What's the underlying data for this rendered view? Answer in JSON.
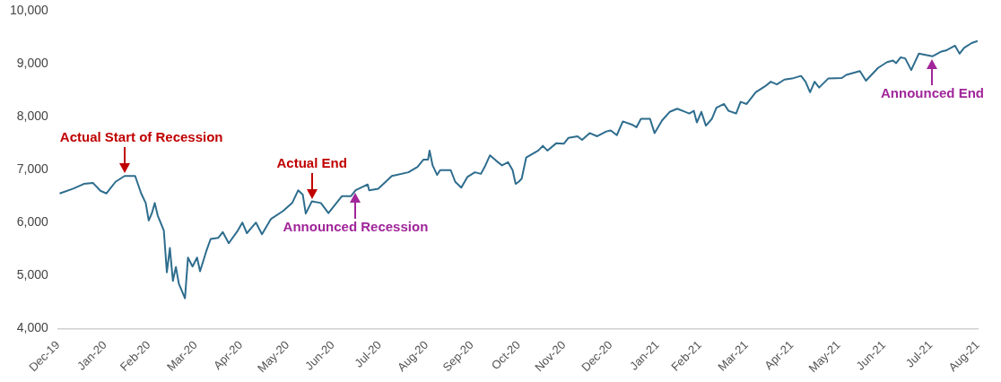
{
  "chart_data": {
    "type": "line",
    "x": [
      "2020-01-01",
      "2020-01-10",
      "2020-01-17",
      "2020-01-23",
      "2020-01-28",
      "2020-02-01",
      "2020-02-07",
      "2020-02-13",
      "2020-02-20",
      "2020-02-24",
      "2020-02-27",
      "2020-02-29",
      "2020-03-02",
      "2020-03-04",
      "2020-03-06",
      "2020-03-10",
      "2020-03-12",
      "2020-03-14",
      "2020-03-16",
      "2020-03-18",
      "2020-03-20",
      "2020-03-24",
      "2020-03-26",
      "2020-03-29",
      "2020-04-01",
      "2020-04-03",
      "2020-04-07",
      "2020-04-10",
      "2020-04-15",
      "2020-04-18",
      "2020-04-22",
      "2020-04-28",
      "2020-05-01",
      "2020-05-04",
      "2020-05-10",
      "2020-05-14",
      "2020-05-20",
      "2020-05-28",
      "2020-06-03",
      "2020-06-07",
      "2020-06-10",
      "2020-06-12",
      "2020-06-16",
      "2020-06-22",
      "2020-06-27",
      "2020-07-06",
      "2020-07-12",
      "2020-07-15",
      "2020-07-23",
      "2020-07-24",
      "2020-07-30",
      "2020-08-08",
      "2020-08-19",
      "2020-08-25",
      "2020-08-29",
      "2020-09-01",
      "2020-09-02",
      "2020-09-04",
      "2020-09-07",
      "2020-09-09",
      "2020-09-16",
      "2020-09-19",
      "2020-09-23",
      "2020-09-27",
      "2020-10-02",
      "2020-10-06",
      "2020-10-09",
      "2020-10-12",
      "2020-10-16",
      "2020-10-20",
      "2020-10-24",
      "2020-10-27",
      "2020-10-29",
      "2020-10-31",
      "2020-11-02",
      "2020-11-05",
      "2020-11-13",
      "2020-11-16",
      "2020-11-19",
      "2020-11-25",
      "2020-11-30",
      "2020-12-03",
      "2020-12-09",
      "2020-12-12",
      "2020-12-17",
      "2020-12-22",
      "2020-12-28",
      "2020-12-31",
      "2021-01-04",
      "2021-01-08",
      "2021-01-14",
      "2021-01-17",
      "2021-01-20",
      "2021-01-26",
      "2021-01-29",
      "2021-02-03",
      "2021-02-08",
      "2021-02-13",
      "2021-02-21",
      "2021-02-24",
      "2021-02-26",
      "2021-03-01",
      "2021-03-04",
      "2021-03-08",
      "2021-03-11",
      "2021-03-16",
      "2021-03-19",
      "2021-03-24",
      "2021-03-27",
      "2021-03-31",
      "2021-04-06",
      "2021-04-12",
      "2021-04-16",
      "2021-04-20",
      "2021-04-25",
      "2021-04-30",
      "2021-05-06",
      "2021-05-09",
      "2021-05-12",
      "2021-05-15",
      "2021-05-18",
      "2021-05-24",
      "2021-06-02",
      "2021-06-05",
      "2021-06-14",
      "2021-06-18",
      "2021-06-26",
      "2021-07-02",
      "2021-07-06",
      "2021-07-08",
      "2021-07-11",
      "2021-07-14",
      "2021-07-18",
      "2021-07-23",
      "2021-08-01",
      "2021-08-07",
      "2021-08-10",
      "2021-08-16",
      "2021-08-19",
      "2021-08-22",
      "2021-08-27",
      "2021-08-31"
    ],
    "series": [
      {
        "color": "#2e6d8e",
        "values": [
          6550,
          6640,
          6730,
          6750,
          6600,
          6550,
          6770,
          6880,
          6880,
          6550,
          6370,
          6040,
          6170,
          6370,
          6130,
          5850,
          5060,
          5520,
          4900,
          5160,
          4840,
          4570,
          5340,
          5170,
          5340,
          5080,
          5450,
          5690,
          5710,
          5820,
          5610,
          5850,
          6000,
          5800,
          6000,
          5780,
          6070,
          6220,
          6370,
          6610,
          6530,
          6170,
          6400,
          6370,
          6180,
          6500,
          6500,
          6610,
          6720,
          6610,
          6640,
          6880,
          6950,
          7050,
          7190,
          7190,
          7360,
          7080,
          6900,
          6990,
          6990,
          6770,
          6660,
          6860,
          6950,
          6920,
          7080,
          7270,
          7170,
          7080,
          7140,
          6990,
          6730,
          6770,
          6830,
          7230,
          7360,
          7450,
          7360,
          7500,
          7490,
          7600,
          7630,
          7560,
          7690,
          7630,
          7720,
          7740,
          7650,
          7910,
          7850,
          7800,
          7960,
          7960,
          7690,
          7930,
          8090,
          8150,
          8060,
          8110,
          7890,
          8090,
          7830,
          7960,
          8170,
          8240,
          8110,
          8060,
          8280,
          8240,
          8460,
          8570,
          8660,
          8610,
          8700,
          8720,
          8770,
          8660,
          8460,
          8660,
          8550,
          8720,
          8730,
          8790,
          8860,
          8680,
          8920,
          9030,
          9060,
          9010,
          9120,
          9100,
          8880,
          9190,
          9140,
          9230,
          9250,
          9340,
          9190,
          9300,
          9390,
          9430
        ]
      }
    ],
    "xlim": [
      "2019-12-31",
      "2021-08-31"
    ],
    "xticks": [
      {
        "value": "2019-12-31",
        "label": "Dec-19"
      },
      {
        "value": "2020-01-31",
        "label": "Jan-20"
      },
      {
        "value": "2020-02-29",
        "label": "Feb-20"
      },
      {
        "value": "2020-03-31",
        "label": "Mar-20"
      },
      {
        "value": "2020-04-30",
        "label": "Apr-20"
      },
      {
        "value": "2020-05-31",
        "label": "May-20"
      },
      {
        "value": "2020-06-30",
        "label": "Jun-20"
      },
      {
        "value": "2020-07-31",
        "label": "Jul-20"
      },
      {
        "value": "2020-08-31",
        "label": "Aug-20"
      },
      {
        "value": "2020-09-30",
        "label": "Sep-20"
      },
      {
        "value": "2020-10-31",
        "label": "Oct-20"
      },
      {
        "value": "2020-11-30",
        "label": "Nov-20"
      },
      {
        "value": "2020-12-31",
        "label": "Dec-20"
      },
      {
        "value": "2021-01-31",
        "label": "Jan-21"
      },
      {
        "value": "2021-02-28",
        "label": "Feb-21"
      },
      {
        "value": "2021-03-31",
        "label": "Mar-21"
      },
      {
        "value": "2021-04-30",
        "label": "Apr-21"
      },
      {
        "value": "2021-05-31",
        "label": "May-21"
      },
      {
        "value": "2021-06-30",
        "label": "Jun-21"
      },
      {
        "value": "2021-07-31",
        "label": "Jul-21"
      },
      {
        "value": "2021-08-31",
        "label": "Aug-21"
      }
    ],
    "ylim": [
      4000,
      10000
    ],
    "yticks": [
      {
        "value": 4000,
        "label": "4,000"
      },
      {
        "value": 5000,
        "label": "5,000"
      },
      {
        "value": 6000,
        "label": "6,000"
      },
      {
        "value": 7000,
        "label": "7,000"
      },
      {
        "value": 8000,
        "label": "8,000"
      },
      {
        "value": 9000,
        "label": "9,000"
      },
      {
        "value": 10000,
        "label": "10,000"
      }
    ],
    "annotations": [
      {
        "text": "Actual Start of Recession",
        "x": "2020-02-13",
        "y": 6880
      },
      {
        "text": "Actual End",
        "x": "2020-06-16",
        "y": 6400
      },
      {
        "text": "Announced Recession",
        "x": "2020-07-15",
        "y": 6610
      },
      {
        "text": "Announced End",
        "x": "2021-08-01",
        "y": 9140
      }
    ],
    "grid": false,
    "legend": false,
    "marker": "none",
    "line_style": "solid"
  }
}
